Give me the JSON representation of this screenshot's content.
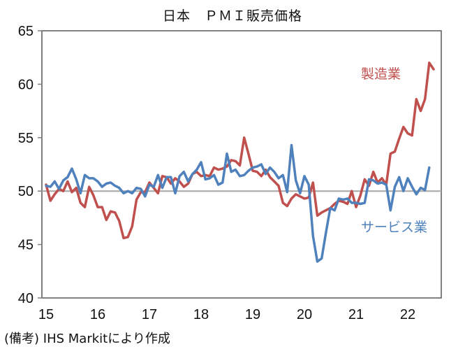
{
  "title": "日本　ＰＭＩ販売価格",
  "note": "(備考) IHS Markitにより作成",
  "colors": {
    "manufacturing": "#C0504D",
    "services": "#4F81BD",
    "axis": "#7f7f7f",
    "reference_line": "#a6a6a6"
  },
  "chart_data": {
    "type": "line",
    "title": "日本　ＰＭＩ販売価格",
    "xlabel": "",
    "ylabel": "",
    "ylim": [
      40,
      65
    ],
    "yticks": [
      40,
      45,
      50,
      55,
      60,
      65
    ],
    "xticks": [
      "15",
      "16",
      "17",
      "18",
      "19",
      "20",
      "21",
      "22"
    ],
    "x_start": "2015-01",
    "frequency": "monthly",
    "reference_line": 50,
    "grid": false,
    "legend_position": "inline labels",
    "series": [
      {
        "name": "製造業",
        "label_position": "upper right",
        "values": [
          50.6,
          49.1,
          49.7,
          50.2,
          50.0,
          50.9,
          49.9,
          50.3,
          48.9,
          48.5,
          50.4,
          49.6,
          48.5,
          48.5,
          47.3,
          48.1,
          48.0,
          47.2,
          45.6,
          45.7,
          46.7,
          49.2,
          49.9,
          49.9,
          50.8,
          50.3,
          49.8,
          51.4,
          51.3,
          50.7,
          51.2,
          50.9,
          50.4,
          50.7,
          51.6,
          51.8,
          51.4,
          51.5,
          51.4,
          52.2,
          52.0,
          52.1,
          52.3,
          52.9,
          52.8,
          52.4,
          55.0,
          53.5,
          51.9,
          51.8,
          51.4,
          52.0,
          51.3,
          50.9,
          50.5,
          48.9,
          48.6,
          49.3,
          49.7,
          49.5,
          49.3,
          49.4,
          50.8,
          47.7,
          48.0,
          48.2,
          48.4,
          48.8,
          49.1,
          49.0,
          48.8,
          50.0,
          48.5,
          49.6,
          51.1,
          50.5,
          51.8,
          50.8,
          51.2,
          50.6,
          53.5,
          53.7,
          54.9,
          56.0,
          55.4,
          55.2,
          58.6,
          57.5,
          58.6,
          62.0,
          61.4
        ]
      },
      {
        "name": "サービス業",
        "label_position": "lower right",
        "values": [
          50.5,
          50.4,
          50.9,
          50.2,
          51.0,
          51.3,
          52.1,
          51.1,
          49.8,
          51.5,
          51.2,
          51.2,
          50.9,
          50.4,
          50.7,
          50.8,
          50.5,
          50.3,
          49.8,
          50.0,
          49.8,
          50.3,
          50.2,
          49.5,
          50.6,
          50.4,
          51.5,
          50.3,
          51.3,
          51.3,
          49.8,
          51.4,
          51.8,
          50.9,
          51.6,
          52.0,
          52.7,
          51.1,
          51.2,
          51.5,
          50.6,
          50.8,
          53.5,
          51.8,
          52.0,
          51.4,
          51.5,
          51.9,
          52.2,
          52.3,
          52.5,
          51.6,
          52.2,
          51.8,
          51.2,
          51.5,
          49.9,
          54.3,
          51.0,
          49.8,
          51.4,
          50.6,
          45.8,
          43.4,
          43.7,
          46.1,
          48.4,
          48.2,
          49.3,
          49.2,
          49.3,
          48.9,
          48.9,
          48.8,
          48.9,
          51.1,
          51.0,
          50.7,
          50.8,
          50.6,
          48.2,
          50.4,
          51.3,
          50.0,
          51.2,
          50.4,
          49.7,
          50.3,
          50.1,
          52.2
        ]
      }
    ]
  }
}
